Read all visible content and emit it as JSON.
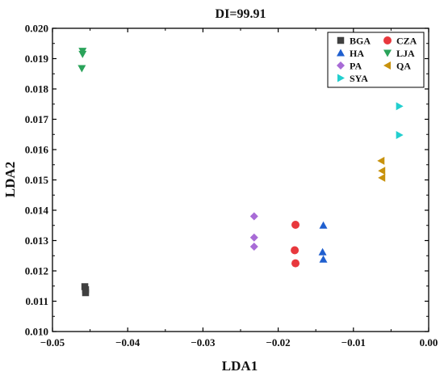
{
  "chart_data": {
    "type": "scatter",
    "title": "DI=99.91",
    "xlabel": "LDA1",
    "ylabel": "LDA2",
    "xlim": [
      -0.05,
      0.0
    ],
    "ylim": [
      0.01,
      0.02
    ],
    "x_ticks": [
      -0.05,
      -0.04,
      -0.03,
      -0.02,
      -0.01,
      0.0
    ],
    "x_tick_labels": [
      "−0.05",
      "−0.04",
      "−0.03",
      "−0.02",
      "−0.01",
      "0.00"
    ],
    "y_ticks": [
      0.01,
      0.011,
      0.012,
      0.013,
      0.014,
      0.015,
      0.016,
      0.017,
      0.018,
      0.019,
      0.02
    ],
    "y_tick_labels": [
      "0.010",
      "0.011",
      "0.012",
      "0.013",
      "0.014",
      "0.015",
      "0.016",
      "0.017",
      "0.018",
      "0.019",
      "0.020"
    ],
    "grid": false,
    "legend_position": "top-right",
    "legend_columns": 2,
    "series": [
      {
        "name": "BGA",
        "marker": "square",
        "color": "#404040",
        "points": [
          [
            -0.0457,
            0.01148
          ],
          [
            -0.0456,
            0.01138
          ],
          [
            -0.0456,
            0.01128
          ]
        ]
      },
      {
        "name": "CZA",
        "marker": "circle",
        "color": "#e8383d",
        "points": [
          [
            -0.0177,
            0.01352
          ],
          [
            -0.0178,
            0.01268
          ],
          [
            -0.0177,
            0.01225
          ]
        ]
      },
      {
        "name": "HA",
        "marker": "triangle-up",
        "color": "#1f5fcf",
        "points": [
          [
            -0.014,
            0.0135
          ],
          [
            -0.0141,
            0.01262
          ],
          [
            -0.014,
            0.01238
          ]
        ]
      },
      {
        "name": "LJA",
        "marker": "triangle-down",
        "color": "#2aa35a",
        "points": [
          [
            -0.046,
            0.01925
          ],
          [
            -0.046,
            0.01915
          ],
          [
            -0.0461,
            0.01868
          ]
        ]
      },
      {
        "name": "PA",
        "marker": "diamond",
        "color": "#a86bd6",
        "points": [
          [
            -0.0232,
            0.0138
          ],
          [
            -0.0232,
            0.0131
          ],
          [
            -0.0232,
            0.0128
          ]
        ]
      },
      {
        "name": "QA",
        "marker": "triangle-left",
        "color": "#c8920d",
        "points": [
          [
            -0.0063,
            0.01563
          ],
          [
            -0.0062,
            0.0153
          ],
          [
            -0.0062,
            0.01507
          ]
        ]
      },
      {
        "name": "SYA",
        "marker": "triangle-right",
        "color": "#22cfcf",
        "points": [
          [
            -0.0039,
            0.01743
          ],
          [
            -0.0039,
            0.01648
          ]
        ]
      }
    ],
    "legend_order": [
      "BGA",
      "CZA",
      "HA",
      "LJA",
      "PA",
      "QA",
      "SYA"
    ]
  }
}
